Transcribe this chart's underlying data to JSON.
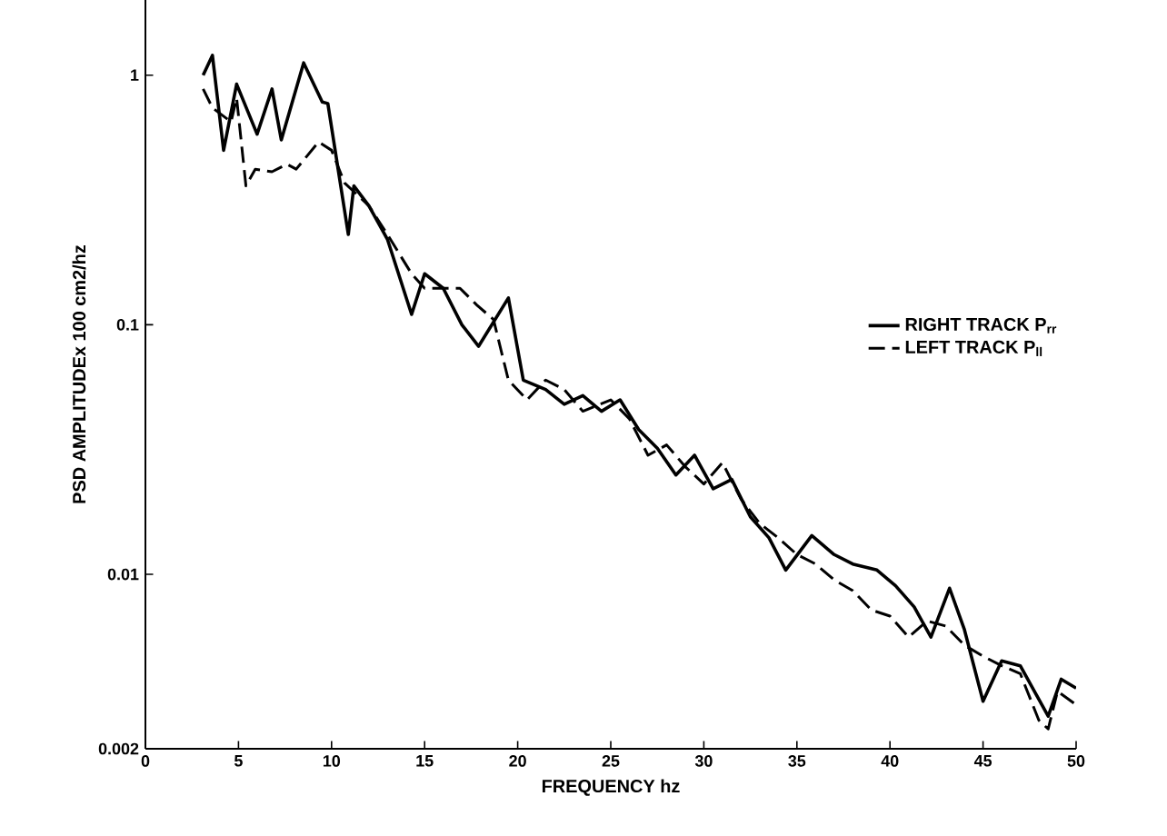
{
  "chart_data": {
    "type": "line",
    "xlabel": "FREQUENCY hz",
    "ylabel": "PSD AMPLITUDEx 100    cm2/hz",
    "log": "y",
    "xlim": [
      0,
      50
    ],
    "ylim": [
      0.002,
      2
    ],
    "xticks": [
      0,
      5,
      10,
      15,
      20,
      25,
      30,
      35,
      40,
      45,
      50
    ],
    "yticks": [
      0.002,
      0.01,
      0.1,
      1
    ],
    "legend": "right",
    "marker": "none",
    "series": [
      {
        "name": "RIGHT TRACK P$_{rr}$",
        "color": "#000000",
        "line_style": "solid",
        "x": [
          3.1,
          3.6,
          4.2,
          4.9,
          6.0,
          6.8,
          7.3,
          8.5,
          9.5,
          9.8,
          10.9,
          11.2,
          12.0,
          13.0,
          14.3,
          15.0,
          16.0,
          17.0,
          17.9,
          19.5,
          20.3,
          21.5,
          22.5,
          23.5,
          24.5,
          25.5,
          26.5,
          27.5,
          28.5,
          29.5,
          30.5,
          31.5,
          32.5,
          33.5,
          34.4,
          35.8,
          37.0,
          38.0,
          39.3,
          40.3,
          41.3,
          42.2,
          43.2,
          44.0,
          45.0,
          46.0,
          47.0,
          48.5,
          49.2,
          50.0
        ],
        "values": [
          1.0,
          1.2,
          0.5,
          0.92,
          0.58,
          0.88,
          0.55,
          1.12,
          0.78,
          0.77,
          0.23,
          0.36,
          0.3,
          0.22,
          0.11,
          0.16,
          0.14,
          0.1,
          0.082,
          0.128,
          0.06,
          0.055,
          0.048,
          0.052,
          0.045,
          0.05,
          0.038,
          0.032,
          0.025,
          0.03,
          0.022,
          0.024,
          0.017,
          0.014,
          0.0104,
          0.0143,
          0.012,
          0.011,
          0.0104,
          0.009,
          0.0074,
          0.0056,
          0.0088,
          0.006,
          0.0031,
          0.0045,
          0.0043,
          0.0027,
          0.0038,
          0.0035
        ]
      },
      {
        "name": "LEFT TRACK P$_{ll}$",
        "color": "#000000",
        "line_style": "dashed",
        "x": [
          3.1,
          3.6,
          4.6,
          4.9,
          5.4,
          5.9,
          6.8,
          7.6,
          8.1,
          9.3,
          10.0,
          10.7,
          12.0,
          13.0,
          14.3,
          15.0,
          16.9,
          17.8,
          18.7,
          19.5,
          20.5,
          21.5,
          22.5,
          23.5,
          25.0,
          26.0,
          27.0,
          28.0,
          29.0,
          30.0,
          31.0,
          32.0,
          33.0,
          34.0,
          35.0,
          36.0,
          37.0,
          38.0,
          39.0,
          40.0,
          41.0,
          42.0,
          43.0,
          44.0,
          45.0,
          46.0,
          47.0,
          48.0,
          48.5,
          49.0,
          50.0
        ],
        "values": [
          0.88,
          0.74,
          0.65,
          0.81,
          0.36,
          0.42,
          0.41,
          0.44,
          0.42,
          0.54,
          0.5,
          0.37,
          0.3,
          0.23,
          0.16,
          0.14,
          0.14,
          0.12,
          0.105,
          0.06,
          0.05,
          0.06,
          0.055,
          0.045,
          0.05,
          0.042,
          0.03,
          0.033,
          0.027,
          0.023,
          0.028,
          0.02,
          0.016,
          0.014,
          0.012,
          0.011,
          0.0095,
          0.0086,
          0.0072,
          0.0068,
          0.0056,
          0.0065,
          0.0062,
          0.0052,
          0.0047,
          0.0043,
          0.004,
          0.0026,
          0.0024,
          0.0034,
          0.003
        ]
      }
    ]
  }
}
